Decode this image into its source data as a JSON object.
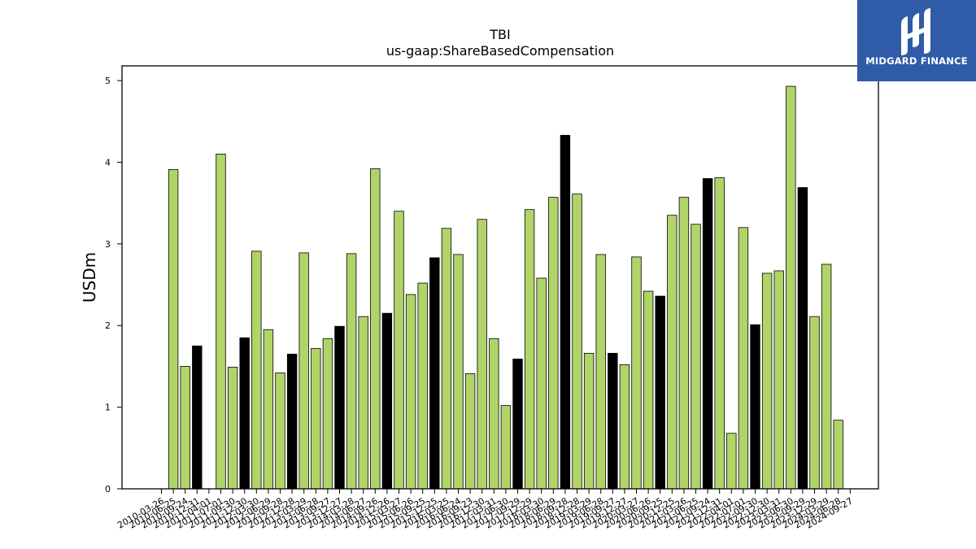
{
  "brand": {
    "name": "MIDGARD FINANCE",
    "logo_icon": "midgard-logo-icon",
    "color": "#2f5ba8"
  },
  "chart_data": {
    "type": "bar",
    "title": "TBI",
    "subtitle": "us-gaap:ShareBasedCompensation",
    "ylabel": "USDm",
    "xlabel": "",
    "ylim": [
      0,
      5.18
    ],
    "yticks": [
      0,
      1,
      2,
      3,
      4,
      5
    ],
    "grid": false,
    "colors": {
      "quarter": "#b0d468",
      "annual": "#000000",
      "edge": "#000000"
    },
    "categories": [
      "2010-03-26",
      "2010-06-25",
      "2010-09-24",
      "2010-12-31",
      "2011-04-01",
      "2011-07-01",
      "2011-09-30",
      "2011-12-30",
      "2012-03-30",
      "2012-06-29",
      "2012-09-28",
      "2012-12-28",
      "2013-03-29",
      "2013-06-28",
      "2013-09-27",
      "2013-12-27",
      "2014-03-28",
      "2014-06-27",
      "2014-09-26",
      "2014-12-26",
      "2015-03-27",
      "2015-06-26",
      "2015-09-25",
      "2015-12-25",
      "2016-03-25",
      "2016-06-24",
      "2016-09-23",
      "2016-12-30",
      "2017-03-31",
      "2017-06-30",
      "2017-09-29",
      "2017-12-29",
      "2018-03-30",
      "2018-06-29",
      "2018-09-28",
      "2018-12-28",
      "2019-03-29",
      "2019-06-28",
      "2019-09-27",
      "2019-12-27",
      "2020-03-27",
      "2020-06-26",
      "2020-09-25",
      "2020-12-25",
      "2021-03-26",
      "2021-06-25",
      "2021-09-24",
      "2021-12-31",
      "2022-04-01",
      "2022-07-01",
      "2022-09-30",
      "2022-12-30",
      "2023-03-31",
      "2023-06-30",
      "2023-09-29",
      "2023-12-29",
      "2024-03-29",
      "2024-06-28",
      "2024-09-27"
    ],
    "x_tick_labels": [
      "2010-03-26",
      "2010-06-25",
      "2010-09-24",
      "2010-12-31",
      "2011-04-01",
      "2011-07-01",
      "2011-09-30",
      "2011-12-30",
      "2012-03-30",
      "2012-06-29",
      "2012-09-28",
      "2012-12-28",
      "2013-03-29",
      "2013-06-28",
      "2013-09-27",
      "2013-12-27",
      "2014-03-28",
      "2014-06-27",
      "2014-09-26",
      "2014-12-26",
      "2015-03-27",
      "2015-06-26",
      "2015-09-25",
      "2015-12-25",
      "2016-03-25",
      "2016-06-24",
      "2016-09-23",
      "2016-12-30",
      "2017-03-31",
      "2017-06-30",
      "2017-09-29",
      "2017-12-29",
      "2018-03-30",
      "2018-06-29",
      "2018-09-28",
      "2018-12-28",
      "2019-03-29",
      "2019-06-28",
      "2019-09-27",
      "2019-12-27",
      "2020-03-27",
      "2020-06-26",
      "2020-09-25",
      "2020-12-25",
      "2021-03-26",
      "2021-06-25",
      "2021-09-24",
      "2021-12-31",
      "2022-04-01",
      "2022-07-01",
      "2022-09-30",
      "2022-12-30",
      "2023-03-31",
      "2023-06-30",
      "2023-09-29",
      "2023-12-29",
      "2024-03-29",
      "2024-06-28",
      "2024-09-27"
    ],
    "values": [
      null,
      3.91,
      1.5,
      1.75,
      null,
      4.1,
      1.49,
      1.85,
      2.91,
      1.95,
      1.42,
      1.65,
      2.89,
      1.72,
      1.84,
      1.99,
      2.88,
      2.11,
      3.92,
      2.15,
      3.4,
      2.38,
      2.52,
      2.83,
      3.19,
      2.87,
      1.41,
      3.3,
      1.84,
      1.02,
      1.59,
      3.42,
      2.58,
      3.57,
      4.33,
      3.61,
      1.66,
      2.87,
      1.66,
      1.52,
      2.84,
      2.42,
      2.36,
      3.35,
      3.57,
      3.24,
      3.8,
      3.81,
      0.68,
      3.2,
      2.01,
      2.64,
      2.67,
      4.93,
      3.69,
      2.11,
      2.75,
      0.84,
      null
    ],
    "period": [
      "quarter",
      "quarter",
      "quarter",
      "annual",
      "quarter",
      "quarter",
      "quarter",
      "annual",
      "quarter",
      "quarter",
      "quarter",
      "annual",
      "quarter",
      "quarter",
      "quarter",
      "annual",
      "quarter",
      "quarter",
      "quarter",
      "annual",
      "quarter",
      "quarter",
      "quarter",
      "annual",
      "quarter",
      "quarter",
      "quarter",
      "quarter",
      "quarter",
      "quarter",
      "annual",
      "quarter",
      "quarter",
      "quarter",
      "annual",
      "quarter",
      "quarter",
      "quarter",
      "annual",
      "quarter",
      "quarter",
      "quarter",
      "annual",
      "quarter",
      "quarter",
      "quarter",
      "annual",
      "quarter",
      "quarter",
      "quarter",
      "annual",
      "quarter",
      "quarter",
      "quarter",
      "annual",
      "quarter",
      "quarter",
      "quarter",
      "quarter"
    ]
  }
}
